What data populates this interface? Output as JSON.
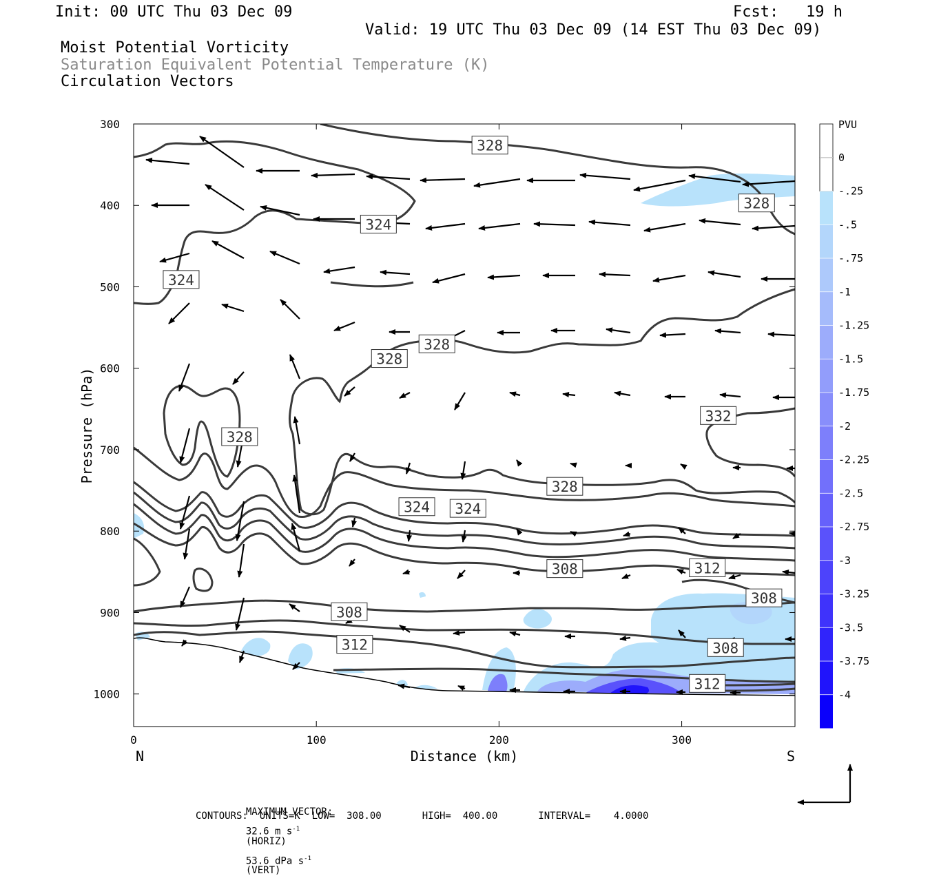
{
  "header": {
    "init": "Init: 00 UTC Thu 03 Dec 09",
    "fcst": "Fcst:   19 h",
    "valid": "Valid: 19 UTC Thu 03 Dec 09 (14 EST Thu 03 Dec 09)"
  },
  "titles": [
    "Moist Potential Vorticity",
    "Saturation Equivalent Potential Temperature (K)",
    "Circulation Vectors"
  ],
  "chart_data": {
    "type": "contour",
    "xlabel": "Distance (km)",
    "ylabel": "Pressure (hPa)",
    "xlim": [
      0,
      362
    ],
    "ylim": [
      1040,
      300
    ],
    "x_ticks": [
      0,
      100,
      200,
      300
    ],
    "y_ticks": [
      300,
      400,
      500,
      600,
      700,
      800,
      900,
      1000
    ],
    "x_end_labels": {
      "left": "N",
      "right": "S"
    },
    "colorbar": {
      "title": "PVU",
      "labels": [
        "0",
        "-.25",
        "-.5",
        "-.75",
        "-1",
        "-1.25",
        "-1.5",
        "-1.75",
        "-2",
        "-2.25",
        "-2.5",
        "-2.75",
        "-3",
        "-3.25",
        "-3.5",
        "-3.75",
        "-4"
      ],
      "colors": [
        "#ffffff",
        "#ffffff",
        "#b8e2fb",
        "#b3d6fb",
        "#adc9fb",
        "#a5bbfb",
        "#9cacfb",
        "#929dfb",
        "#888efb",
        "#7d7ffb",
        "#7270fb",
        "#6661fb",
        "#5a52fb",
        "#4d43fb",
        "#3f33fb",
        "#3024fb",
        "#2014fb",
        "#0a00fb"
      ]
    },
    "contour_labels": [
      {
        "value": "328",
        "x": 195,
        "p": 326
      },
      {
        "value": "328",
        "x": 341,
        "p": 397
      },
      {
        "value": "324",
        "x": 26,
        "p": 491
      },
      {
        "value": "324",
        "x": 134,
        "p": 423
      },
      {
        "value": "328",
        "x": 140,
        "p": 588
      },
      {
        "value": "328",
        "x": 166,
        "p": 570
      },
      {
        "value": "328",
        "x": 58,
        "p": 684
      },
      {
        "value": "332",
        "x": 320,
        "p": 658
      },
      {
        "value": "328",
        "x": 236,
        "p": 745
      },
      {
        "value": "324",
        "x": 155,
        "p": 770
      },
      {
        "value": "324",
        "x": 183,
        "p": 772
      },
      {
        "value": "308",
        "x": 236,
        "p": 846
      },
      {
        "value": "312",
        "x": 314,
        "p": 845
      },
      {
        "value": "308",
        "x": 345,
        "p": 882
      },
      {
        "value": "308",
        "x": 118,
        "p": 899
      },
      {
        "value": "312",
        "x": 121,
        "p": 939
      },
      {
        "value": "308",
        "x": 324,
        "p": 943
      },
      {
        "value": "312",
        "x": 314,
        "p": 987
      }
    ]
  },
  "footer": {
    "max_vector_label": "MAXIMUM VECTOR:",
    "max_horiz": "32.6 m s",
    "horiz_exp": "-1",
    "horiz_tag": "(HORIZ)",
    "max_vert": "53.6 dPa s",
    "vert_exp": "-1",
    "vert_tag": "(VERT)",
    "contours": "CONTOURS:  UNITS=K  LOW=  308.00       HIGH=  400.00       INTERVAL=    4.0000"
  }
}
